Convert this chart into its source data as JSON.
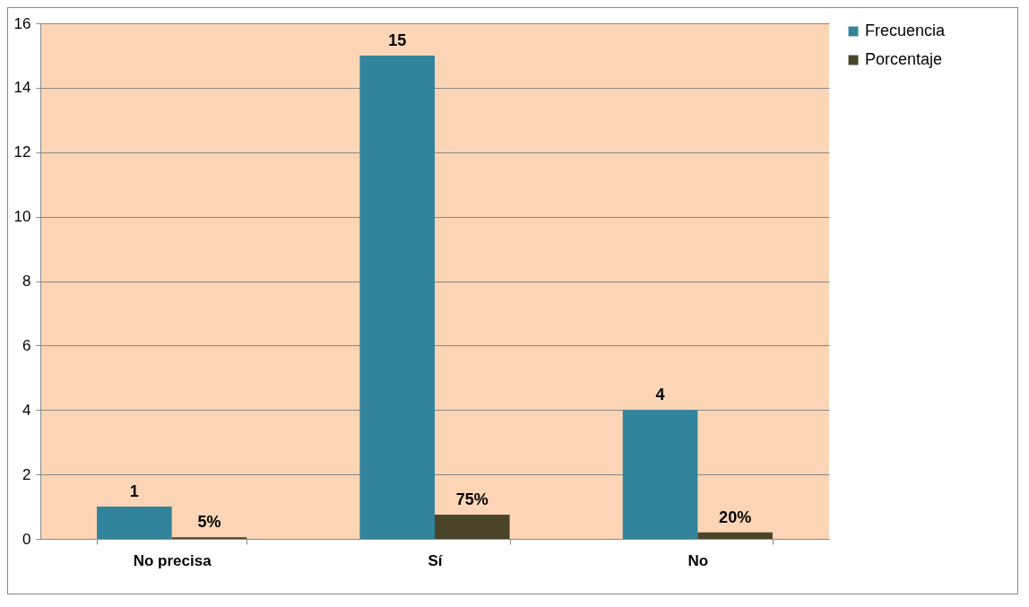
{
  "chart_data": {
    "type": "bar",
    "categories": [
      "No precisa",
      "Sí",
      "No"
    ],
    "series": [
      {
        "name": "Frecuencia",
        "color": "#31849b",
        "values": [
          1,
          15,
          4
        ],
        "value_labels": [
          "1",
          "15",
          "4"
        ]
      },
      {
        "name": "Porcentaje",
        "color": "#4a452a",
        "values": [
          0.05,
          0.75,
          0.2
        ],
        "value_labels": [
          "5%",
          "75%",
          "20%"
        ]
      }
    ],
    "ylim": [
      0,
      16
    ],
    "yticks": [
      0,
      2,
      4,
      6,
      8,
      10,
      12,
      14,
      16
    ],
    "grid": "y",
    "legend": "right"
  }
}
